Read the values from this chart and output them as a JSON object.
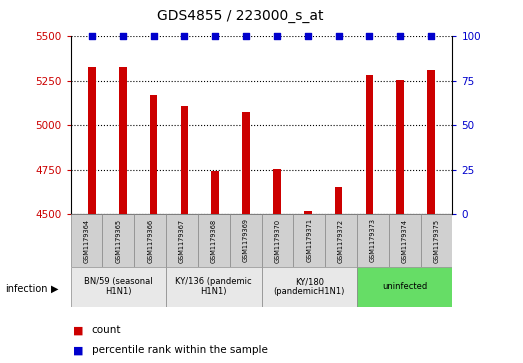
{
  "title": "GDS4855 / 223000_s_at",
  "samples": [
    "GSM1179364",
    "GSM1179365",
    "GSM1179366",
    "GSM1179367",
    "GSM1179368",
    "GSM1179369",
    "GSM1179370",
    "GSM1179371",
    "GSM1179372",
    "GSM1179373",
    "GSM1179374",
    "GSM1179375"
  ],
  "counts": [
    5330,
    5325,
    5170,
    5110,
    4745,
    5075,
    4755,
    4520,
    4650,
    5280,
    5255,
    5310
  ],
  "percentiles": [
    100,
    100,
    100,
    100,
    100,
    100,
    100,
    100,
    100,
    100,
    100,
    100
  ],
  "ylim_left": [
    4500,
    5500
  ],
  "ylim_right": [
    0,
    100
  ],
  "yticks_left": [
    4500,
    4750,
    5000,
    5250,
    5500
  ],
  "yticks_right": [
    0,
    25,
    50,
    75,
    100
  ],
  "bar_color": "#cc0000",
  "dot_color": "#0000cc",
  "bar_width": 0.25,
  "groups": [
    {
      "label": "BN/59 (seasonal\nH1N1)",
      "start": 0,
      "end": 3,
      "color": "#e8e8e8"
    },
    {
      "label": "KY/136 (pandemic\nH1N1)",
      "start": 3,
      "end": 6,
      "color": "#e8e8e8"
    },
    {
      "label": "KY/180\n(pandemicH1N1)",
      "start": 6,
      "end": 9,
      "color": "#e8e8e8"
    },
    {
      "label": "uninfected",
      "start": 9,
      "end": 12,
      "color": "#66dd66"
    }
  ],
  "infection_label": "infection",
  "legend_count_label": "count",
  "legend_percentile_label": "percentile rank within the sample",
  "left_tick_color": "#cc0000",
  "right_tick_color": "#0000cc",
  "cell_bg": "#d0d0d0"
}
